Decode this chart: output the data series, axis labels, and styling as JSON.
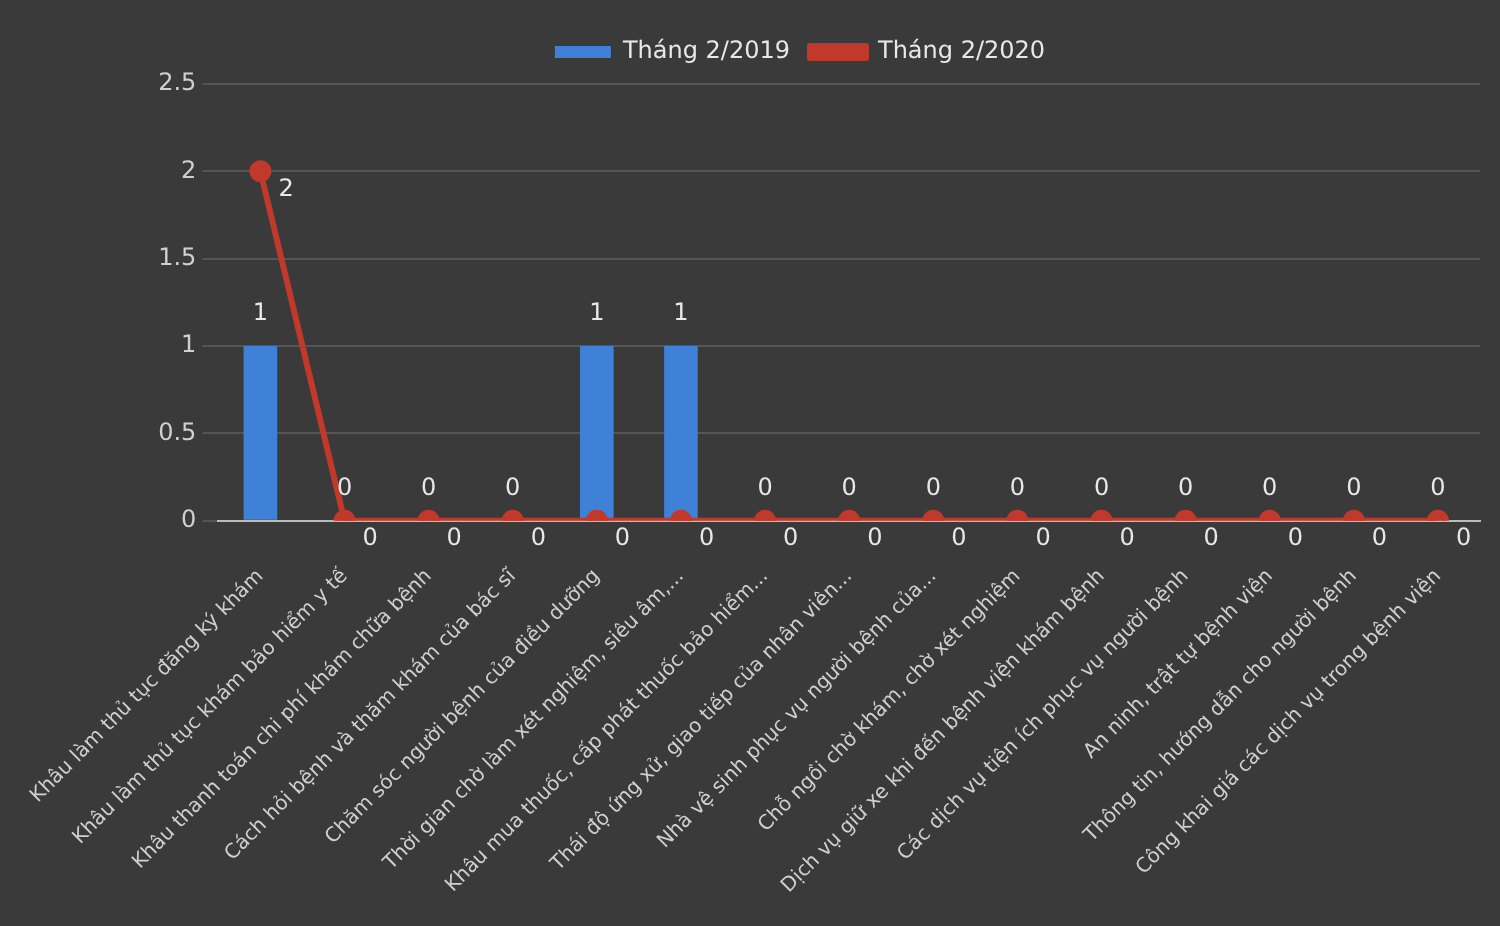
{
  "chart_data": {
    "type": "bar",
    "categories": [
      "Khâu làm thủ tục đăng ký khám",
      "Khâu làm thủ tục khám bảo hiểm y tế",
      "Khâu thanh toán chi phí khám chữa bệnh",
      "Cách hỏi bệnh và thăm khám của bác sĩ",
      "Chăm sóc người bệnh của điều dưỡng",
      "Thời gian chờ làm xét nghiệm, siêu âm,...",
      "Khâu mua thuốc, cấp phát thuốc bảo hiểm...",
      "Thái độ ứng xử, giao tiếp của nhân viên...",
      "Nhà vệ sinh phục vụ người bệnh của...",
      "Chỗ ngồi chờ khám, chờ xét nghiệm",
      "Dịch vụ giữ xe khi đến bệnh viện khám bệnh",
      "Các dịch vụ tiện ích phục vụ người bệnh",
      "An ninh, trật tự bệnh viện",
      "Thông tin, hướng dẫn cho người bệnh",
      "Công khai giá các dịch vụ trong bệnh viện"
    ],
    "series": [
      {
        "name": "Tháng 2/2019",
        "color": "#3f81d6",
        "values": [
          1,
          0,
          0,
          0,
          1,
          1,
          0,
          0,
          0,
          0,
          0,
          0,
          0,
          0,
          0
        ]
      },
      {
        "name": "Tháng 2/2020",
        "type": "line",
        "color": "#c0392b",
        "values": [
          2,
          0,
          0,
          0,
          0,
          0,
          0,
          0,
          0,
          0,
          0,
          0,
          0,
          0,
          0
        ]
      }
    ],
    "ylim": [
      0,
      2.5
    ],
    "yticks": [
      0,
      0.5,
      1,
      1.5,
      2,
      2.5
    ],
    "grid": "y",
    "legend": "top",
    "marker": "circle",
    "data_labels": true
  }
}
